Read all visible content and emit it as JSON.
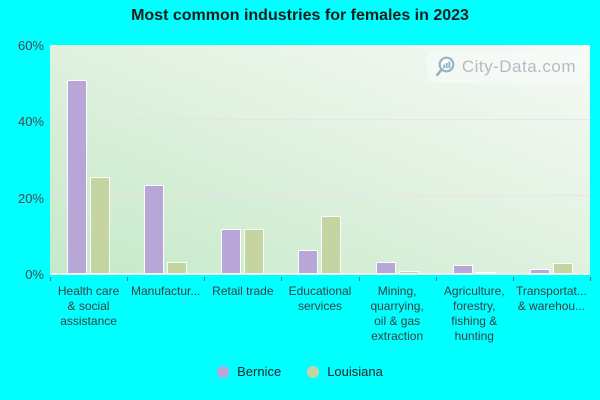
{
  "title": "Most common industries for females in 2023",
  "watermark": {
    "text": "City-Data.com",
    "icon": "magnifier-bars-icon"
  },
  "colors": {
    "page_background": "#00ffff",
    "bernice_bar": "#b9a6d9",
    "louisiana_bar": "#c5d5a1",
    "bar_border": "#ffffff",
    "gridline": "#eedeee",
    "title_text": "#1c1c1c",
    "axis_text": "#45474d",
    "watermark_text": "#b3bcc1"
  },
  "y_axis": {
    "tick_labels": [
      "60%",
      "40%",
      "20%",
      "0%"
    ],
    "tick_values": [
      60,
      40,
      20,
      0
    ]
  },
  "legend": {
    "items": [
      {
        "label": "Bernice"
      },
      {
        "label": "Louisiana"
      }
    ]
  },
  "chart_data": {
    "type": "bar",
    "title": "Most common industries for females in 2023",
    "categories": [
      "Health care & social assistance",
      "Manufactur...",
      "Retail trade",
      "Educational services",
      "Mining, quarrying, oil & gas extraction",
      "Agriculture, forestry, fishing & hunting",
      "Transportat... & warehou..."
    ],
    "category_display_lines": [
      [
        "Health care",
        "& social",
        "assistance"
      ],
      [
        "Manufactur..."
      ],
      [
        "Retail trade"
      ],
      [
        "Educational",
        "services"
      ],
      [
        "Mining,",
        "quarrying,",
        "oil & gas",
        "extraction"
      ],
      [
        "Agriculture,",
        "forestry,",
        "fishing &",
        "hunting"
      ],
      [
        "Transportat...",
        "& warehou..."
      ]
    ],
    "series": [
      {
        "name": "Bernice",
        "color": "#b9a6d9",
        "values": [
          50.3,
          23,
          11.4,
          6.1,
          3,
          2.1,
          1.1
        ]
      },
      {
        "name": "Louisiana",
        "color": "#c5d5a1",
        "values": [
          25,
          3,
          11.5,
          14.8,
          0.5,
          0.3,
          2.5
        ]
      }
    ],
    "ylabel": "",
    "xlabel": "",
    "ylim": [
      0,
      60
    ],
    "y_tick_interval": 20,
    "grid_values": [
      20,
      40
    ],
    "grid": true,
    "legend_position": "bottom"
  }
}
